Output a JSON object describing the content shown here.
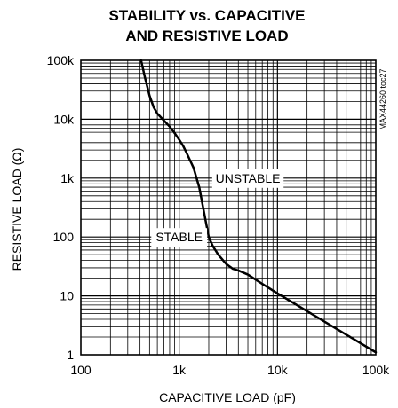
{
  "chart_data": {
    "type": "line",
    "title_lines": [
      "STABILITY vs. CAPACITIVE",
      "AND RESISTIVE LOAD"
    ],
    "xlabel": "CAPACITIVE LOAD (pF)",
    "ylabel": "RESISTIVE LOAD (Ω)",
    "x_scale": "log",
    "y_scale": "log",
    "xlim": [
      100,
      100000
    ],
    "ylim": [
      1,
      100000
    ],
    "x_ticks": [
      {
        "value": 100,
        "label": "100"
      },
      {
        "value": 1000,
        "label": "1k"
      },
      {
        "value": 10000,
        "label": "10k"
      },
      {
        "value": 100000,
        "label": "100k"
      }
    ],
    "y_ticks": [
      {
        "value": 1,
        "label": "1"
      },
      {
        "value": 10,
        "label": "10"
      },
      {
        "value": 100,
        "label": "100"
      },
      {
        "value": 1000,
        "label": "1k"
      },
      {
        "value": 10000,
        "label": "10k"
      },
      {
        "value": 100000,
        "label": "100k"
      }
    ],
    "grid": true,
    "series": [
      {
        "x": [
          410,
          450,
          500,
          550,
          600,
          700,
          800,
          900,
          1000,
          1100,
          1200,
          1400,
          1600,
          1800,
          2000,
          2200,
          2500,
          3000,
          3500,
          4000,
          5000,
          7000,
          10000,
          20000,
          50000,
          100000
        ],
        "y": [
          100000,
          50000,
          25000,
          16000,
          12500,
          9500,
          7500,
          5800,
          4500,
          3500,
          2600,
          1500,
          700,
          250,
          100,
          70,
          50,
          35,
          29,
          27,
          23,
          16,
          11,
          5.5,
          2.2,
          1.1
        ]
      }
    ],
    "annotations": [
      {
        "text": "UNSTABLE",
        "x": 5000,
        "y": 1000
      },
      {
        "text": "STABLE",
        "x": 1000,
        "y": 100
      }
    ],
    "watermark": "MAX44260 toc27"
  }
}
